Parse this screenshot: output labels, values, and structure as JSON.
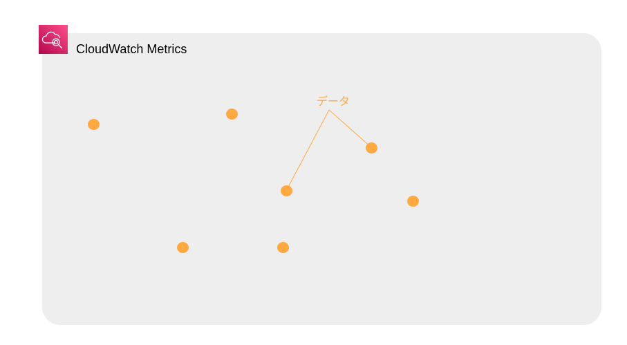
{
  "group": {
    "title": "CloudWatch Metrics",
    "icon": "cloudwatch-icon"
  },
  "annotation": {
    "label": "データ"
  },
  "colors": {
    "accent": "#ffa940",
    "panel": "#eeeeee",
    "icon": "#e7157b"
  }
}
